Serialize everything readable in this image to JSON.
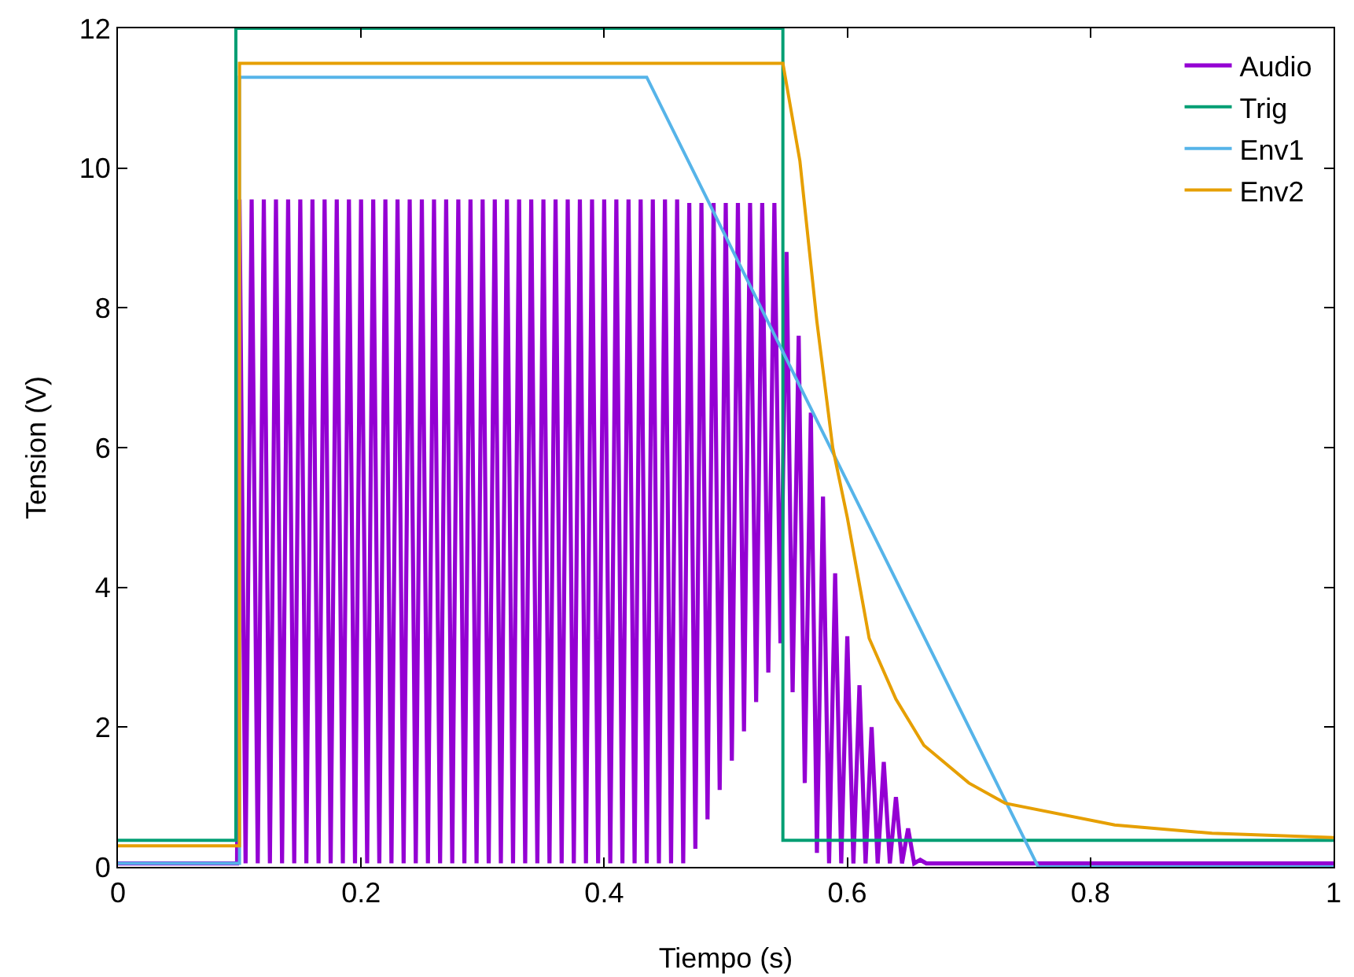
{
  "chart_data": {
    "type": "line",
    "xlabel": "Tiempo (s)",
    "ylabel": "Tension (V)",
    "xlim": [
      0,
      1
    ],
    "ylim": [
      0,
      12
    ],
    "xticks": [
      0,
      0.2,
      0.4,
      0.6,
      0.8,
      1
    ],
    "yticks": [
      0,
      2,
      4,
      6,
      8,
      10,
      12
    ],
    "legend": "top right",
    "series": [
      {
        "name": "Audio",
        "color": "#9400d3",
        "x": [
          0,
          0.098,
          0.1,
          0.105,
          0.11,
          0.115,
          0.12,
          0.125,
          0.13,
          0.135,
          0.14,
          0.145,
          0.15,
          0.155,
          0.16,
          0.165,
          0.17,
          0.175,
          0.18,
          0.185,
          0.19,
          0.195,
          0.2,
          0.205,
          0.21,
          0.215,
          0.22,
          0.225,
          0.23,
          0.235,
          0.24,
          0.245,
          0.25,
          0.255,
          0.26,
          0.265,
          0.27,
          0.275,
          0.28,
          0.285,
          0.29,
          0.295,
          0.3,
          0.305,
          0.31,
          0.315,
          0.32,
          0.325,
          0.33,
          0.335,
          0.34,
          0.345,
          0.35,
          0.355,
          0.36,
          0.365,
          0.37,
          0.375,
          0.38,
          0.385,
          0.39,
          0.395,
          0.4,
          0.405,
          0.41,
          0.415,
          0.42,
          0.425,
          0.43,
          0.435,
          0.44,
          0.445,
          0.45,
          0.455,
          0.46,
          0.465,
          0.47,
          0.475,
          0.48,
          0.485,
          0.49,
          0.495,
          0.5,
          0.505,
          0.51,
          0.515,
          0.52,
          0.525,
          0.53,
          0.535,
          0.54,
          0.545,
          0.55,
          0.555,
          0.56,
          0.565,
          0.57,
          0.575,
          0.58,
          0.585,
          0.59,
          0.595,
          0.6,
          0.605,
          0.61,
          0.615,
          0.62,
          0.625,
          0.63,
          0.635,
          0.64,
          0.645,
          0.65,
          0.655,
          0.66,
          0.665,
          1
        ],
        "values": [
          0.05,
          0.05,
          9.55,
          0.05,
          9.55,
          0.05,
          9.55,
          0.05,
          9.55,
          0.05,
          9.55,
          0.05,
          9.55,
          0.05,
          9.55,
          0.05,
          9.55,
          0.05,
          9.55,
          0.05,
          9.55,
          0.05,
          9.55,
          0.05,
          9.55,
          0.05,
          9.55,
          0.05,
          9.55,
          0.05,
          9.55,
          0.05,
          9.55,
          0.05,
          9.55,
          0.05,
          9.55,
          0.05,
          9.55,
          0.05,
          9.55,
          0.05,
          9.55,
          0.05,
          9.55,
          0.05,
          9.55,
          0.05,
          9.55,
          0.05,
          9.55,
          0.05,
          9.55,
          0.05,
          9.55,
          0.05,
          9.55,
          0.05,
          9.55,
          0.05,
          9.55,
          0.05,
          9.55,
          0.05,
          9.55,
          0.05,
          9.55,
          0.05,
          9.55,
          0.05,
          9.55,
          0.05,
          9.55,
          0.05,
          9.55,
          0.05,
          9.5,
          0.26,
          9.5,
          0.68,
          9.5,
          1.1,
          9.5,
          1.52,
          9.5,
          1.94,
          9.5,
          2.36,
          9.5,
          2.78,
          9.5,
          3.2,
          8.8,
          2.5,
          7.6,
          1.2,
          6.5,
          0.2,
          5.3,
          0.05,
          4.2,
          0.05,
          3.3,
          0.05,
          2.6,
          0.05,
          2.0,
          0.05,
          1.5,
          0.05,
          1.0,
          0.05,
          0.55,
          0.05,
          0.1,
          0.05,
          0.05
        ]
      },
      {
        "name": "Trig",
        "color": "#009e73",
        "x": [
          0,
          0.097,
          0.097,
          0.547,
          0.547,
          1
        ],
        "values": [
          0.38,
          0.38,
          12,
          12,
          0.38,
          0.38
        ]
      },
      {
        "name": "Env1",
        "color": "#56b4e9",
        "x": [
          0,
          0.1,
          0.1,
          0.435,
          0.757,
          1
        ],
        "values": [
          0.05,
          0.05,
          11.3,
          11.3,
          0,
          0
        ]
      },
      {
        "name": "Env2",
        "color": "#e69f00",
        "x": [
          0,
          0.1,
          0.1,
          0.547,
          0.561,
          0.575,
          0.588,
          0.6,
          0.618,
          0.64,
          0.663,
          0.7,
          0.73,
          0.82,
          0.9,
          1
        ],
        "values": [
          0.3,
          0.3,
          11.5,
          11.5,
          10.1,
          7.8,
          6.0,
          5.0,
          3.27,
          2.4,
          1.74,
          1.2,
          0.91,
          0.6,
          0.48,
          0.42
        ]
      }
    ]
  }
}
